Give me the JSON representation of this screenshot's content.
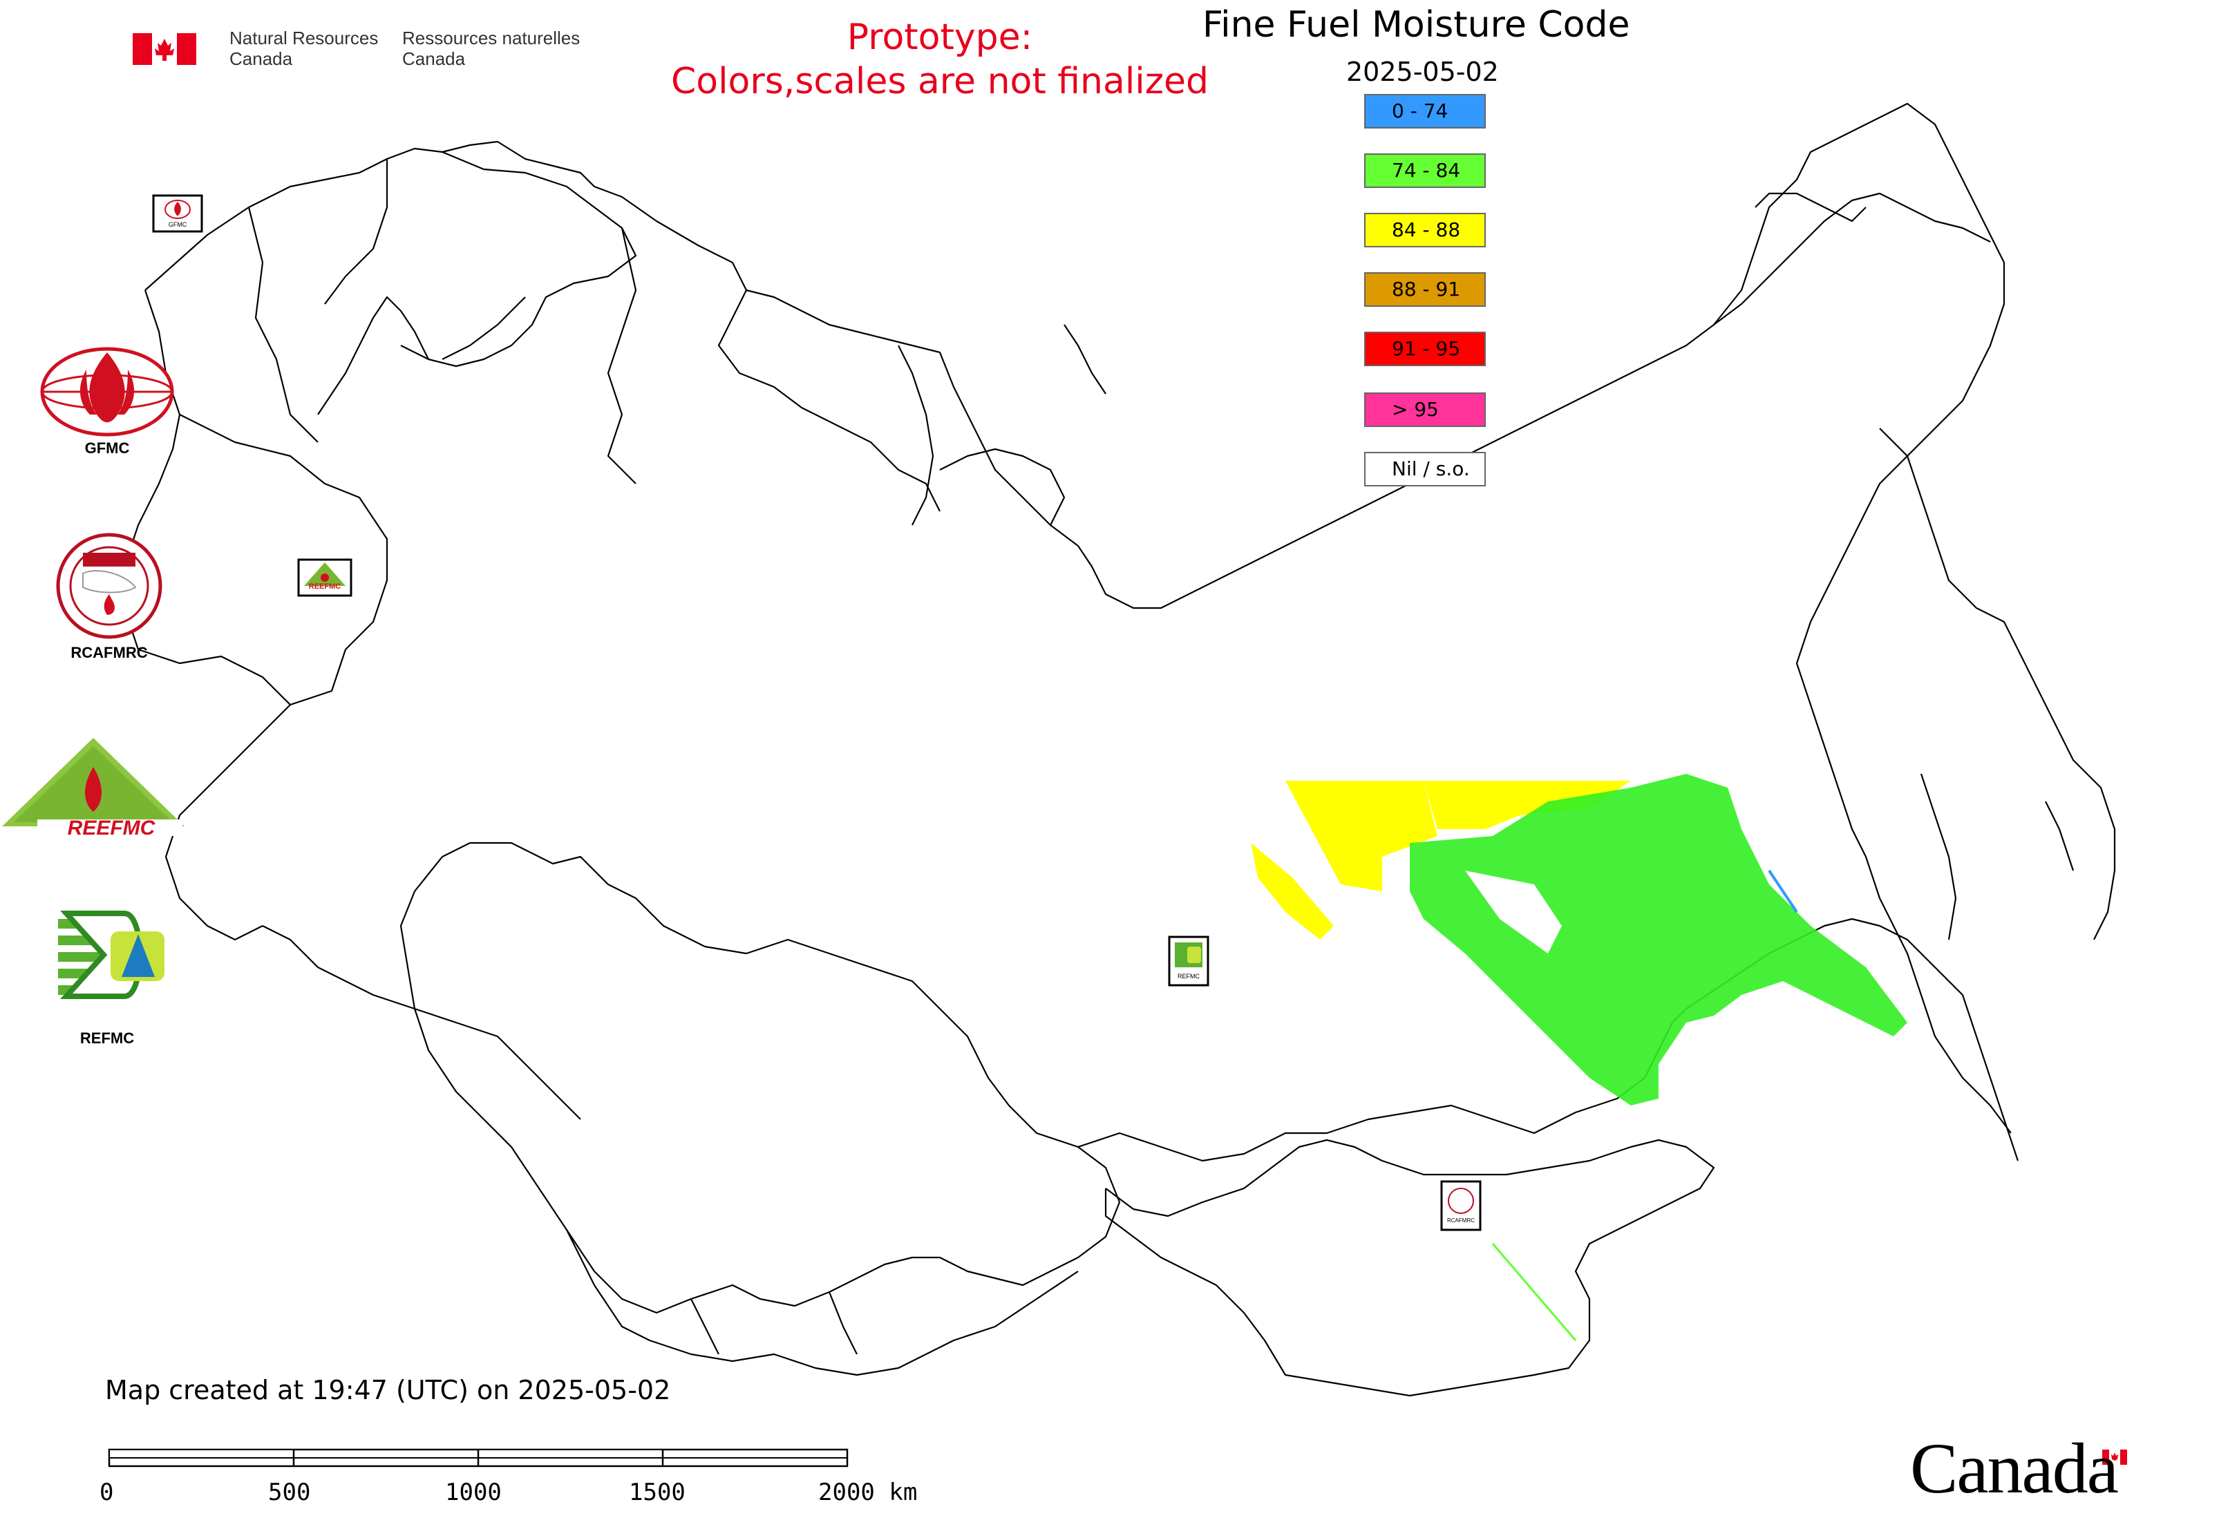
{
  "header": {
    "agency_en_line1": "Natural Resources",
    "agency_en_line2": "Canada",
    "agency_fr_line1": "Ressources naturelles",
    "agency_fr_line2": "Canada",
    "prototype_line1": "Prototype:",
    "prototype_line2": "Colors,scales are not finalized"
  },
  "map": {
    "title": "Fine Fuel Moisture Code",
    "date": "2025-05-02",
    "created_note": "Map created at 19:47 (UTC) on 2025-05-02"
  },
  "legend": [
    {
      "label": "0 - 74",
      "color": "#3399ff"
    },
    {
      "label": "74 - 84",
      "color": "#66ff33"
    },
    {
      "label": "84 - 88",
      "color": "#ffff00"
    },
    {
      "label": "88 - 91",
      "color": "#dd9900"
    },
    {
      "label": "91 - 95",
      "color": "#ff0000"
    },
    {
      "label": "> 95",
      "color": "#ff3399"
    },
    {
      "label": "Nil / s.o.",
      "color": "#ffffff"
    }
  ],
  "logos": {
    "gfmc": "GFMC",
    "rcafmrc": "RCAFMRC",
    "reefmc": "REEFMC",
    "refmc": "REFMC",
    "small_gfmc": "GFMC",
    "small_reefmc": "REEFMC",
    "small_refmc": "REFMC",
    "small_rcafmrc": "RCAFMRC"
  },
  "scale_bar": {
    "ticks": [
      "0",
      "500",
      "1000",
      "1500",
      "2000 km"
    ]
  },
  "footer": {
    "wordmark": "Canada"
  }
}
